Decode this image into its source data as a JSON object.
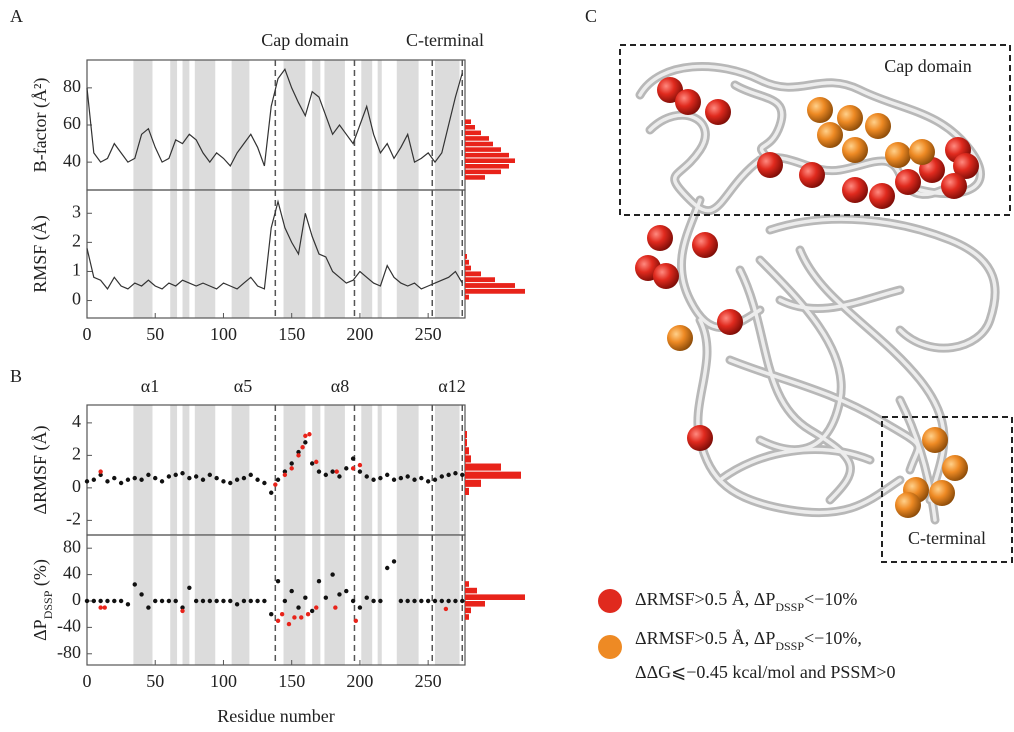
{
  "panels": [
    "A",
    "B",
    "C"
  ],
  "helix_regions": [
    [
      34,
      48
    ],
    [
      61,
      66
    ],
    [
      70,
      75
    ],
    [
      79,
      94
    ],
    [
      106,
      119
    ],
    [
      144,
      160
    ],
    [
      165,
      171
    ],
    [
      174,
      189
    ],
    [
      201,
      209
    ],
    [
      213,
      216
    ],
    [
      227,
      243
    ],
    [
      255,
      273
    ]
  ],
  "helix_color": "#dcdcdc",
  "domain_boundaries": [
    138,
    196,
    253,
    275
  ],
  "chart_data": [
    {
      "type": "line",
      "ylabel": "B-factor (Å²)",
      "annotations": [
        "Cap domain",
        "C-terminal"
      ],
      "xlim": [
        0,
        277
      ],
      "ylim": [
        25,
        95
      ],
      "yticks": [
        40,
        60,
        80
      ],
      "series": [
        {
          "color": "#333333",
          "x": [
            0,
            5,
            10,
            15,
            20,
            25,
            30,
            35,
            40,
            45,
            50,
            55,
            60,
            65,
            70,
            75,
            80,
            85,
            90,
            95,
            100,
            105,
            110,
            115,
            120,
            125,
            130,
            135,
            140,
            145,
            150,
            155,
            160,
            165,
            170,
            175,
            180,
            185,
            190,
            195,
            200,
            205,
            210,
            215,
            220,
            225,
            230,
            235,
            240,
            245,
            250,
            255,
            260,
            265,
            270,
            275
          ],
          "values": [
            80,
            45,
            40,
            42,
            50,
            45,
            40,
            42,
            55,
            58,
            48,
            40,
            42,
            52,
            50,
            55,
            52,
            45,
            40,
            45,
            42,
            38,
            45,
            50,
            55,
            48,
            38,
            70,
            85,
            90,
            80,
            72,
            65,
            78,
            75,
            65,
            55,
            60,
            55,
            50,
            60,
            70,
            55,
            45,
            50,
            42,
            48,
            55,
            40,
            42,
            45,
            40,
            45,
            60,
            75,
            88
          ]
        }
      ],
      "side_histogram": {
        "color": "#e8231a",
        "xlim": [
          0,
          30
        ],
        "bins": [
          30,
          33,
          36,
          39,
          42,
          45,
          48,
          51,
          54,
          57,
          60,
          63
        ],
        "counts": [
          10,
          18,
          22,
          25,
          22,
          18,
          14,
          12,
          8,
          5,
          3
        ]
      }
    },
    {
      "type": "line",
      "ylabel": "RMSF (Å)",
      "xlim": [
        0,
        277
      ],
      "ylim": [
        -0.6,
        3.8
      ],
      "yticks": [
        0,
        1,
        2,
        3
      ],
      "xticks": [
        0,
        50,
        100,
        150,
        200,
        250
      ],
      "series": [
        {
          "color": "#333333",
          "x": [
            0,
            5,
            10,
            15,
            20,
            25,
            30,
            35,
            40,
            45,
            50,
            55,
            60,
            65,
            70,
            75,
            80,
            85,
            90,
            95,
            100,
            105,
            110,
            115,
            120,
            125,
            130,
            135,
            140,
            145,
            150,
            155,
            160,
            165,
            170,
            175,
            180,
            185,
            190,
            195,
            200,
            205,
            210,
            215,
            220,
            225,
            230,
            235,
            240,
            245,
            250,
            255,
            260,
            265,
            270,
            275
          ],
          "values": [
            1.8,
            0.8,
            0.7,
            0.4,
            0.8,
            0.5,
            0.4,
            0.6,
            0.5,
            0.7,
            0.5,
            0.4,
            0.6,
            0.5,
            0.7,
            0.6,
            0.5,
            0.6,
            0.5,
            0.4,
            0.6,
            0.5,
            0.4,
            0.6,
            0.8,
            0.5,
            0.4,
            2.5,
            3.4,
            2.5,
            2.0,
            1.6,
            3.0,
            2.2,
            1.6,
            1.5,
            1.0,
            0.8,
            0.6,
            0.7,
            1.0,
            0.8,
            0.6,
            0.5,
            1.2,
            0.8,
            0.6,
            0.5,
            0.6,
            0.4,
            0.5,
            0.6,
            0.7,
            0.8,
            1.0,
            0.6
          ]
        }
      ],
      "side_histogram": {
        "color": "#e8231a",
        "xlim": [
          0,
          30
        ],
        "bins": [
          0,
          0.2,
          0.4,
          0.6,
          0.8,
          1.0,
          1.2,
          1.4,
          1.6
        ],
        "counts": [
          2,
          30,
          25,
          15,
          8,
          3,
          2,
          1
        ]
      }
    },
    {
      "type": "scatter",
      "ylabel": "ΔRMSF (Å)",
      "annotations": [
        "α1",
        "α5",
        "α8",
        "α12"
      ],
      "xlim": [
        0,
        277
      ],
      "ylim": [
        -2.9,
        5.1
      ],
      "yticks": [
        -2,
        0,
        2,
        4
      ],
      "series": [
        {
          "color": "#111111",
          "x": [
            0,
            5,
            10,
            15,
            20,
            25,
            30,
            35,
            40,
            45,
            50,
            55,
            60,
            65,
            70,
            75,
            80,
            85,
            90,
            95,
            100,
            105,
            110,
            115,
            120,
            125,
            130,
            135,
            140,
            145,
            150,
            155,
            160,
            165,
            170,
            175,
            180,
            185,
            190,
            195,
            200,
            205,
            210,
            215,
            220,
            225,
            230,
            235,
            240,
            245,
            250,
            255,
            260,
            265,
            270,
            275
          ],
          "values": [
            0.4,
            0.5,
            0.8,
            0.4,
            0.6,
            0.3,
            0.5,
            0.6,
            0.5,
            0.8,
            0.6,
            0.4,
            0.7,
            0.8,
            0.9,
            0.6,
            0.7,
            0.5,
            0.8,
            0.6,
            0.4,
            0.3,
            0.5,
            0.6,
            0.8,
            0.5,
            0.3,
            -0.3,
            0.5,
            1.0,
            1.5,
            2.2,
            2.8,
            1.5,
            1.0,
            0.8,
            1.0,
            0.7,
            1.2,
            1.8,
            1.0,
            0.7,
            0.5,
            0.6,
            0.8,
            0.5,
            0.6,
            0.7,
            0.5,
            0.6,
            0.4,
            0.5,
            0.7,
            0.8,
            0.9,
            0.8
          ]
        },
        {
          "color": "#e8231a",
          "x": [
            10,
            138,
            145,
            150,
            155,
            158,
            160,
            163,
            168,
            183,
            195,
            200
          ],
          "values": [
            1.0,
            0.2,
            0.8,
            1.2,
            2.0,
            2.5,
            3.2,
            3.3,
            1.6,
            1.0,
            1.2,
            1.4
          ]
        }
      ],
      "side_histogram": {
        "color": "#e8231a",
        "xlim": [
          0,
          30
        ],
        "bins": [
          -0.5,
          0,
          0.5,
          1,
          1.5,
          2,
          2.5,
          3,
          3.5
        ],
        "counts": [
          2,
          8,
          28,
          18,
          3,
          2,
          1,
          1
        ]
      }
    },
    {
      "type": "scatter",
      "ylabel": [
        "ΔP",
        "DSSP",
        " (%)"
      ],
      "xlabel": "Residue number",
      "xlim": [
        0,
        277
      ],
      "ylim": [
        -97,
        100
      ],
      "yticks": [
        -80,
        -40,
        0,
        40,
        80
      ],
      "xticks": [
        0,
        50,
        100,
        150,
        200,
        250
      ],
      "series": [
        {
          "color": "#111111",
          "x": [
            0,
            5,
            10,
            15,
            20,
            25,
            30,
            35,
            40,
            45,
            50,
            55,
            60,
            65,
            70,
            75,
            80,
            85,
            90,
            95,
            100,
            105,
            110,
            115,
            120,
            125,
            130,
            135,
            140,
            145,
            150,
            155,
            160,
            165,
            170,
            175,
            180,
            185,
            190,
            195,
            200,
            205,
            210,
            215,
            220,
            225,
            230,
            235,
            240,
            245,
            250,
            255,
            260,
            265,
            270,
            275
          ],
          "values": [
            0,
            0,
            0,
            0,
            0,
            0,
            -5,
            25,
            10,
            -10,
            0,
            0,
            0,
            0,
            -10,
            20,
            0,
            0,
            0,
            0,
            0,
            0,
            -5,
            0,
            0,
            0,
            0,
            -20,
            30,
            0,
            15,
            -10,
            5,
            -15,
            30,
            5,
            40,
            10,
            15,
            0,
            -10,
            5,
            0,
            0,
            50,
            60,
            0,
            0,
            0,
            0,
            0,
            0,
            0,
            0,
            0,
            0
          ]
        },
        {
          "color": "#e8231a",
          "x": [
            10,
            13,
            70,
            140,
            143,
            148,
            152,
            157,
            162,
            168,
            182,
            197,
            263
          ],
          "values": [
            -10,
            -10,
            -15,
            -30,
            -20,
            -35,
            -25,
            -25,
            -20,
            -10,
            -10,
            -30,
            -12
          ]
        }
      ],
      "side_histogram": {
        "color": "#e8231a",
        "xlim": [
          0,
          30
        ],
        "bins": [
          -30,
          -20,
          -10,
          0,
          10,
          20,
          30
        ],
        "counts": [
          2,
          3,
          10,
          30,
          6,
          2
        ]
      }
    }
  ],
  "structure_panel": {
    "boxes": [
      "Cap domain",
      "C-terminal"
    ],
    "legend": [
      {
        "color": "#e02a1e",
        "lines": [
          [
            "ΔRMSF>0.5 Å, ΔP",
            "DSSP",
            "<−10%"
          ]
        ]
      },
      {
        "color": "#ee8a24",
        "lines": [
          [
            "ΔRMSF>0.5 Å, ΔP",
            "DSSP",
            "<−10%,"
          ],
          [
            "ΔΔG⩽−0.45 kcal/mol and PSSM>0"
          ]
        ]
      }
    ]
  }
}
